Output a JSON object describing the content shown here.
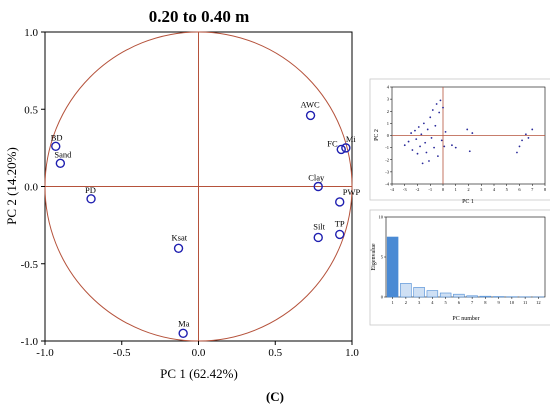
{
  "figure_label": "(C)",
  "colors": {
    "axis_line": "#b5523b",
    "circle": "#b5523b",
    "point": "#1f1fb0",
    "bar": "#4a8ad4",
    "bar_light": "#cfe0f4",
    "inset_dot": "#2a2a9a"
  },
  "chart_data": [
    {
      "type": "scatter",
      "title": "0.20 to 0.40 m",
      "xlabel": "PC 1 (62.42%)",
      "ylabel": "PC 2 (14.20%)",
      "xlim": [
        -1.0,
        1.0
      ],
      "ylim": [
        -1.0,
        1.0
      ],
      "x_ticks": [
        "-1.0",
        "-0.5",
        "0.0",
        "0.5",
        "1.0"
      ],
      "y_ticks": [
        "1.0",
        "0.5",
        "0.0",
        "-0.5",
        "-1.0"
      ],
      "x_tick_values": [
        -1.0,
        -0.5,
        0.0,
        0.5,
        1.0
      ],
      "y_tick_values": [
        1.0,
        0.5,
        0.0,
        -0.5,
        -1.0
      ],
      "unit_circle": true,
      "points": [
        {
          "label": "BD",
          "x": -0.93,
          "y": 0.26
        },
        {
          "label": "Sand",
          "x": -0.9,
          "y": 0.15
        },
        {
          "label": "PD",
          "x": -0.7,
          "y": -0.08
        },
        {
          "label": "Ksat",
          "x": -0.13,
          "y": -0.4
        },
        {
          "label": "Ma",
          "x": -0.1,
          "y": -0.95
        },
        {
          "label": "AWC",
          "x": 0.73,
          "y": 0.46
        },
        {
          "label": "FC",
          "x": 0.93,
          "y": 0.24
        },
        {
          "label": "Mi",
          "x": 0.96,
          "y": 0.25
        },
        {
          "label": "Clay",
          "x": 0.78,
          "y": 0.0
        },
        {
          "label": "PWP",
          "x": 0.92,
          "y": -0.1
        },
        {
          "label": "Silt",
          "x": 0.78,
          "y": -0.33
        },
        {
          "label": "TP",
          "x": 0.92,
          "y": -0.31
        }
      ]
    },
    {
      "type": "scatter",
      "xlabel": "PC 1",
      "ylabel": "PC 2",
      "xlim": [
        -4,
        8
      ],
      "ylim": [
        -4,
        4
      ],
      "x_ticks": [
        "-4",
        "-3",
        "-2",
        "-1",
        "0",
        "1",
        "2",
        "3",
        "4",
        "5",
        "6",
        "7",
        "8"
      ],
      "y_ticks": [
        "4",
        "3",
        "2",
        "1",
        "0",
        "-1",
        "-2",
        "-3",
        "-4"
      ],
      "x_tick_values": [
        -4,
        -3,
        -2,
        -1,
        0,
        1,
        2,
        3,
        4,
        5,
        6,
        7,
        8
      ],
      "y_tick_values": [
        4,
        3,
        2,
        1,
        0,
        -1,
        -2,
        -3,
        -4
      ],
      "points": [
        {
          "x": -3.0,
          "y": -0.8
        },
        {
          "x": -2.7,
          "y": -0.5
        },
        {
          "x": -2.5,
          "y": 0.2
        },
        {
          "x": -2.4,
          "y": -1.2
        },
        {
          "x": -2.2,
          "y": 0.4
        },
        {
          "x": -2.1,
          "y": -0.3
        },
        {
          "x": -2.0,
          "y": -1.5
        },
        {
          "x": -1.9,
          "y": 0.7
        },
        {
          "x": -1.8,
          "y": -0.9
        },
        {
          "x": -1.7,
          "y": 0.1
        },
        {
          "x": -1.6,
          "y": -2.3
        },
        {
          "x": -1.5,
          "y": 1.0
        },
        {
          "x": -1.4,
          "y": -0.6
        },
        {
          "x": -1.3,
          "y": -1.4
        },
        {
          "x": -1.2,
          "y": 0.5
        },
        {
          "x": -1.1,
          "y": -2.1
        },
        {
          "x": -1.0,
          "y": 1.5
        },
        {
          "x": -0.9,
          "y": -0.2
        },
        {
          "x": -0.8,
          "y": 2.1
        },
        {
          "x": -0.7,
          "y": -1.0
        },
        {
          "x": -0.6,
          "y": 0.8
        },
        {
          "x": -0.5,
          "y": 2.6
        },
        {
          "x": -0.4,
          "y": -1.7
        },
        {
          "x": -0.3,
          "y": 1.9
        },
        {
          "x": -0.2,
          "y": 2.9
        },
        {
          "x": -0.1,
          "y": -0.4
        },
        {
          "x": 0.0,
          "y": 2.3
        },
        {
          "x": 0.1,
          "y": -0.9
        },
        {
          "x": 0.2,
          "y": 0.3
        },
        {
          "x": 0.7,
          "y": -0.8
        },
        {
          "x": 1.0,
          "y": -1.0
        },
        {
          "x": 1.9,
          "y": 0.5
        },
        {
          "x": 2.1,
          "y": -1.3
        },
        {
          "x": 2.3,
          "y": 0.2
        },
        {
          "x": 5.8,
          "y": -1.4
        },
        {
          "x": 6.0,
          "y": -0.9
        },
        {
          "x": 6.2,
          "y": -0.4
        },
        {
          "x": 6.5,
          "y": 0.1
        },
        {
          "x": 6.7,
          "y": -0.2
        },
        {
          "x": 7.0,
          "y": 0.5
        }
      ]
    },
    {
      "type": "bar",
      "xlabel": "PC number",
      "ylabel": "Eigenvalue",
      "categories": [
        "1",
        "2",
        "3",
        "4",
        "5",
        "6",
        "7",
        "8",
        "9",
        "10",
        "11",
        "12"
      ],
      "values": [
        7.5,
        1.7,
        1.2,
        0.8,
        0.5,
        0.35,
        0.15,
        0.1,
        0.05,
        0.03,
        0.02,
        0.01
      ],
      "ylim": [
        0,
        10
      ],
      "y_ticks": [
        "0",
        "5",
        "10"
      ],
      "y_tick_values": [
        0,
        5,
        10
      ]
    }
  ]
}
